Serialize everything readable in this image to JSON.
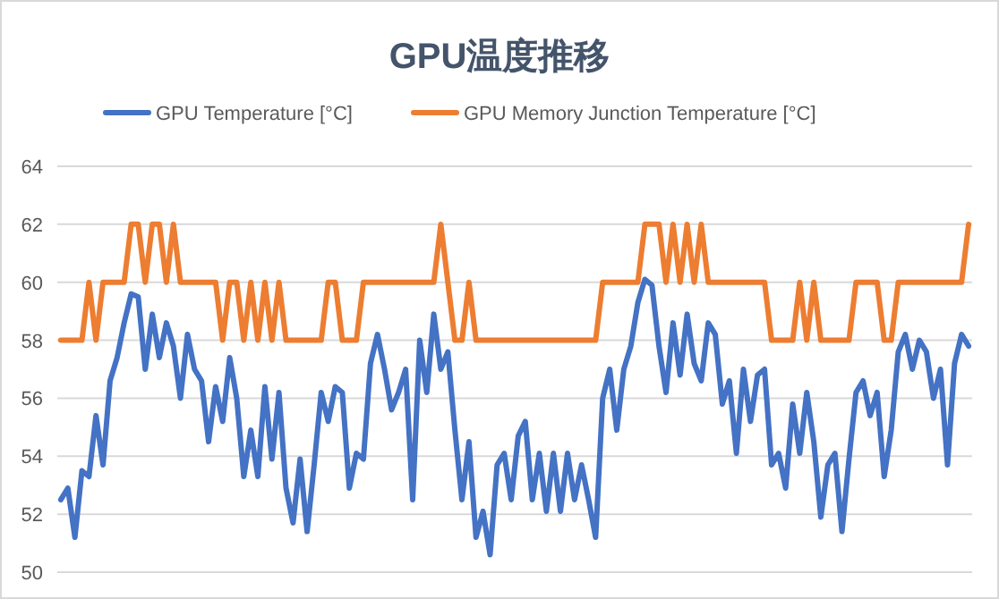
{
  "chart_data": {
    "type": "line",
    "title": "GPU温度推移",
    "legend": "top",
    "grid": "y",
    "ylim": [
      50,
      64
    ],
    "yticks": [
      50,
      52,
      54,
      56,
      58,
      60,
      62,
      64
    ],
    "categories": [
      null,
      null,
      null,
      null,
      null,
      null,
      null,
      null,
      null,
      null,
      null,
      null,
      null,
      null,
      null,
      null,
      null,
      null,
      null,
      null,
      null,
      null,
      null,
      null,
      null,
      null,
      null,
      null,
      null,
      null,
      null,
      null,
      null,
      null,
      null,
      null,
      null,
      null,
      null,
      null,
      null,
      null,
      null,
      null,
      null,
      null,
      null,
      null,
      null,
      null,
      null,
      null,
      null,
      null,
      null,
      null,
      null,
      null,
      null,
      null,
      null,
      null,
      null,
      null,
      null,
      null,
      null,
      null,
      null,
      null,
      null,
      null,
      null,
      null,
      null,
      null,
      null,
      null,
      null,
      null,
      null,
      null,
      null,
      null,
      null,
      null,
      null,
      null,
      null,
      null,
      null,
      null,
      null,
      null,
      null,
      null,
      null,
      null,
      null,
      null,
      null,
      null,
      null,
      null,
      null,
      null,
      null,
      null,
      null,
      null,
      null,
      null,
      null,
      null,
      null,
      null,
      null,
      null,
      null,
      null,
      null,
      null,
      null,
      null,
      null,
      null,
      null,
      null,
      null,
      null
    ],
    "series": [
      {
        "name": "GPU Temperature [°C]",
        "color": "#4472c4",
        "values": [
          52.5,
          52.9,
          51.2,
          53.5,
          53.3,
          55.4,
          53.7,
          56.6,
          57.4,
          58.6,
          59.6,
          59.5,
          57.0,
          58.9,
          57.4,
          58.6,
          57.8,
          56.0,
          58.2,
          57.0,
          56.6,
          54.5,
          56.4,
          55.2,
          57.4,
          56.0,
          53.3,
          54.9,
          53.3,
          56.4,
          53.9,
          56.2,
          52.9,
          51.7,
          53.9,
          51.4,
          53.7,
          56.2,
          55.2,
          56.4,
          56.2,
          52.9,
          54.1,
          53.9,
          57.2,
          58.2,
          57.0,
          55.6,
          56.2,
          57.0,
          52.5,
          58.0,
          56.2,
          58.9,
          57.0,
          57.6,
          54.9,
          52.5,
          54.5,
          51.2,
          52.1,
          50.6,
          53.7,
          54.1,
          52.5,
          54.7,
          55.2,
          52.5,
          54.1,
          52.1,
          54.1,
          52.1,
          54.1,
          52.5,
          53.7,
          52.5,
          51.2,
          56.0,
          57.0,
          54.9,
          57.0,
          57.8,
          59.3,
          60.1,
          59.9,
          57.8,
          56.2,
          58.6,
          56.8,
          58.9,
          57.2,
          56.6,
          58.6,
          58.2,
          55.8,
          56.6,
          54.1,
          57.0,
          55.2,
          56.8,
          57.0,
          53.7,
          54.1,
          52.9,
          55.8,
          54.1,
          56.2,
          54.5,
          51.9,
          53.7,
          54.1,
          51.4,
          53.9,
          56.2,
          56.6,
          55.4,
          56.2,
          53.3,
          54.9,
          57.6,
          58.2,
          57.0,
          58.0,
          57.6,
          56.0,
          57.0,
          53.7,
          57.2,
          58.2,
          57.8
        ]
      },
      {
        "name": "GPU Memory Junction Temperature [°C]",
        "color": "#ed7d31",
        "values": [
          58,
          58,
          58,
          58,
          60,
          58,
          60,
          60,
          60,
          60,
          62,
          62,
          60,
          62,
          62,
          60,
          62,
          60,
          60,
          60,
          60,
          60,
          60,
          58,
          60,
          60,
          58,
          60,
          58,
          60,
          58,
          60,
          58,
          58,
          58,
          58,
          58,
          58,
          60,
          60,
          58,
          58,
          58,
          60,
          60,
          60,
          60,
          60,
          60,
          60,
          60,
          60,
          60,
          60,
          62,
          60,
          58,
          58,
          60,
          58,
          58,
          58,
          58,
          58,
          58,
          58,
          58,
          58,
          58,
          58,
          58,
          58,
          58,
          58,
          58,
          58,
          58,
          60,
          60,
          60,
          60,
          60,
          60,
          62,
          62,
          62,
          60,
          62,
          60,
          62,
          60,
          62,
          60,
          60,
          60,
          60,
          60,
          60,
          60,
          60,
          60,
          58,
          58,
          58,
          58,
          60,
          58,
          60,
          58,
          58,
          58,
          58,
          58,
          60,
          60,
          60,
          60,
          58,
          58,
          60,
          60,
          60,
          60,
          60,
          60,
          60,
          60,
          60,
          60,
          62
        ]
      }
    ]
  }
}
